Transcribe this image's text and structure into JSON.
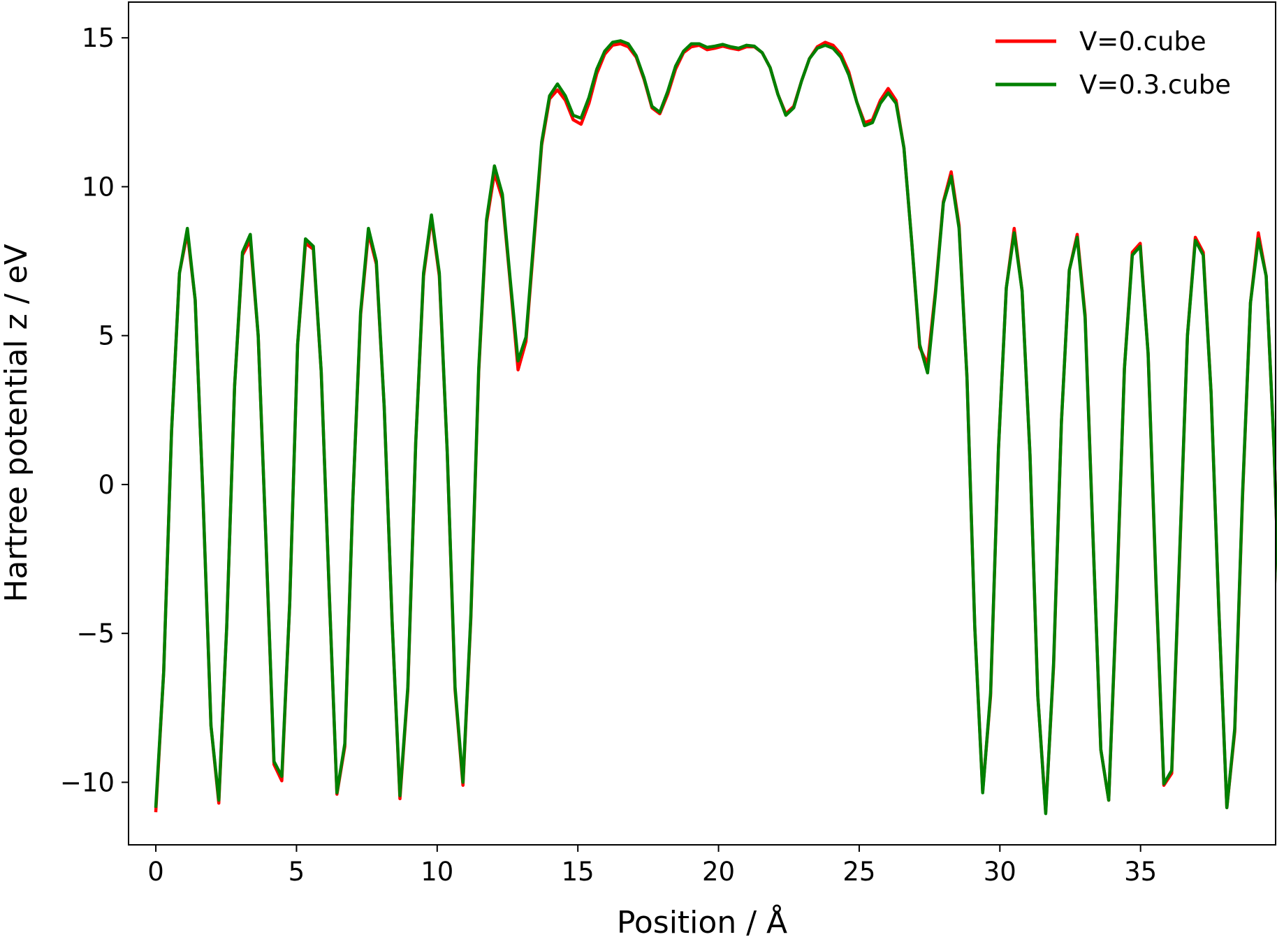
{
  "chart_data": {
    "type": "line",
    "xlabel": "Position / Å",
    "ylabel": "Hartree potential z / eV",
    "xlim": [
      -0.97,
      39.8
    ],
    "ylim": [
      -12.1,
      16.2
    ],
    "xticks": [
      0,
      5,
      10,
      15,
      20,
      25,
      30,
      35
    ],
    "xtick_labels": [
      "0",
      "5",
      "10",
      "15",
      "20",
      "25",
      "30",
      "35"
    ],
    "yticks": [
      -10,
      -5,
      0,
      5,
      10,
      15
    ],
    "ytick_labels": [
      "−10",
      "−5",
      "0",
      "5",
      "10",
      "15"
    ],
    "grid": false,
    "legend_position": "top-right",
    "x_step": 0.2799,
    "series": [
      {
        "name": "V=0.cube",
        "color": "#ff0000",
        "values": [
          -10.95,
          -6.3,
          1.8,
          7.1,
          8.45,
          6.2,
          -0.5,
          -8.1,
          -10.7,
          -4.8,
          3.3,
          7.7,
          8.2,
          5.0,
          -2.0,
          -9.4,
          -9.95,
          -4.0,
          4.7,
          8.1,
          7.9,
          3.8,
          -3.5,
          -10.4,
          -8.8,
          -0.6,
          5.7,
          8.45,
          7.4,
          2.6,
          -4.6,
          -10.55,
          -6.9,
          1.4,
          7.0,
          8.95,
          7.0,
          1.1,
          -6.9,
          -10.1,
          -4.5,
          3.8,
          8.8,
          10.45,
          9.6,
          6.8,
          3.85,
          4.8,
          8.1,
          11.4,
          12.95,
          13.25,
          12.9,
          12.25,
          12.1,
          12.8,
          13.8,
          14.45,
          14.75,
          14.8,
          14.7,
          14.35,
          13.6,
          12.65,
          12.45,
          13.1,
          13.95,
          14.5,
          14.7,
          14.75,
          14.6,
          14.65,
          14.72,
          14.65,
          14.6,
          14.7,
          14.7,
          14.5,
          14.0,
          13.1,
          12.45,
          12.7,
          13.55,
          14.3,
          14.7,
          14.85,
          14.75,
          14.45,
          13.85,
          12.85,
          12.15,
          12.25,
          12.9,
          13.3,
          12.9,
          11.3,
          8.1,
          4.6,
          4.05,
          6.5,
          9.5,
          10.5,
          8.7,
          3.6,
          -4.8,
          -10.3,
          -7.1,
          1.2,
          6.6,
          8.6,
          6.5,
          1.0,
          -7.1,
          -11.0,
          -6.1,
          2.1,
          7.2,
          8.4,
          5.7,
          -1.7,
          -8.9,
          -10.6,
          -3.9,
          3.9,
          7.8,
          8.1,
          4.4,
          -3.3,
          -10.1,
          -9.7,
          -2.5,
          5.0,
          8.3,
          7.8,
          3.1,
          -4.3,
          -10.85,
          -8.3,
          -0.4,
          6.1,
          8.45,
          7.0,
          1.2,
          -6.7
        ]
      },
      {
        "name": "V=0.3.cube",
        "color": "#008000",
        "values": [
          -10.8,
          -6.3,
          1.8,
          7.1,
          8.6,
          6.2,
          -0.5,
          -8.1,
          -10.6,
          -4.8,
          3.3,
          7.8,
          8.4,
          5.0,
          -2.0,
          -9.3,
          -9.8,
          -4.0,
          4.7,
          8.25,
          8.0,
          3.8,
          -3.5,
          -10.35,
          -8.7,
          -0.6,
          5.8,
          8.6,
          7.5,
          2.6,
          -4.6,
          -10.45,
          -6.8,
          1.4,
          7.1,
          9.05,
          7.1,
          1.1,
          -6.8,
          -10.0,
          -4.4,
          3.9,
          8.9,
          10.7,
          9.75,
          6.9,
          4.15,
          4.95,
          8.25,
          11.5,
          13.05,
          13.45,
          13.05,
          12.4,
          12.3,
          13.0,
          13.95,
          14.55,
          14.85,
          14.9,
          14.8,
          14.4,
          13.65,
          12.7,
          12.5,
          13.2,
          14.05,
          14.55,
          14.8,
          14.8,
          14.68,
          14.72,
          14.78,
          14.7,
          14.65,
          14.75,
          14.72,
          14.5,
          14.0,
          13.1,
          12.4,
          12.65,
          13.55,
          14.3,
          14.65,
          14.75,
          14.65,
          14.35,
          13.75,
          12.85,
          12.05,
          12.15,
          12.8,
          13.15,
          12.8,
          11.3,
          8.1,
          4.7,
          3.75,
          6.4,
          9.45,
          10.35,
          8.6,
          3.6,
          -4.8,
          -10.35,
          -7.0,
          1.2,
          6.6,
          8.45,
          6.5,
          1.0,
          -7.1,
          -11.05,
          -6.0,
          2.1,
          7.2,
          8.3,
          5.6,
          -1.7,
          -8.9,
          -10.6,
          -3.8,
          3.9,
          7.7,
          8.0,
          4.4,
          -3.2,
          -10.05,
          -9.6,
          -2.4,
          5.0,
          8.2,
          7.7,
          3.1,
          -4.3,
          -10.85,
          -8.2,
          -0.3,
          6.1,
          8.25,
          7.0,
          1.2,
          -6.75
        ]
      }
    ]
  }
}
